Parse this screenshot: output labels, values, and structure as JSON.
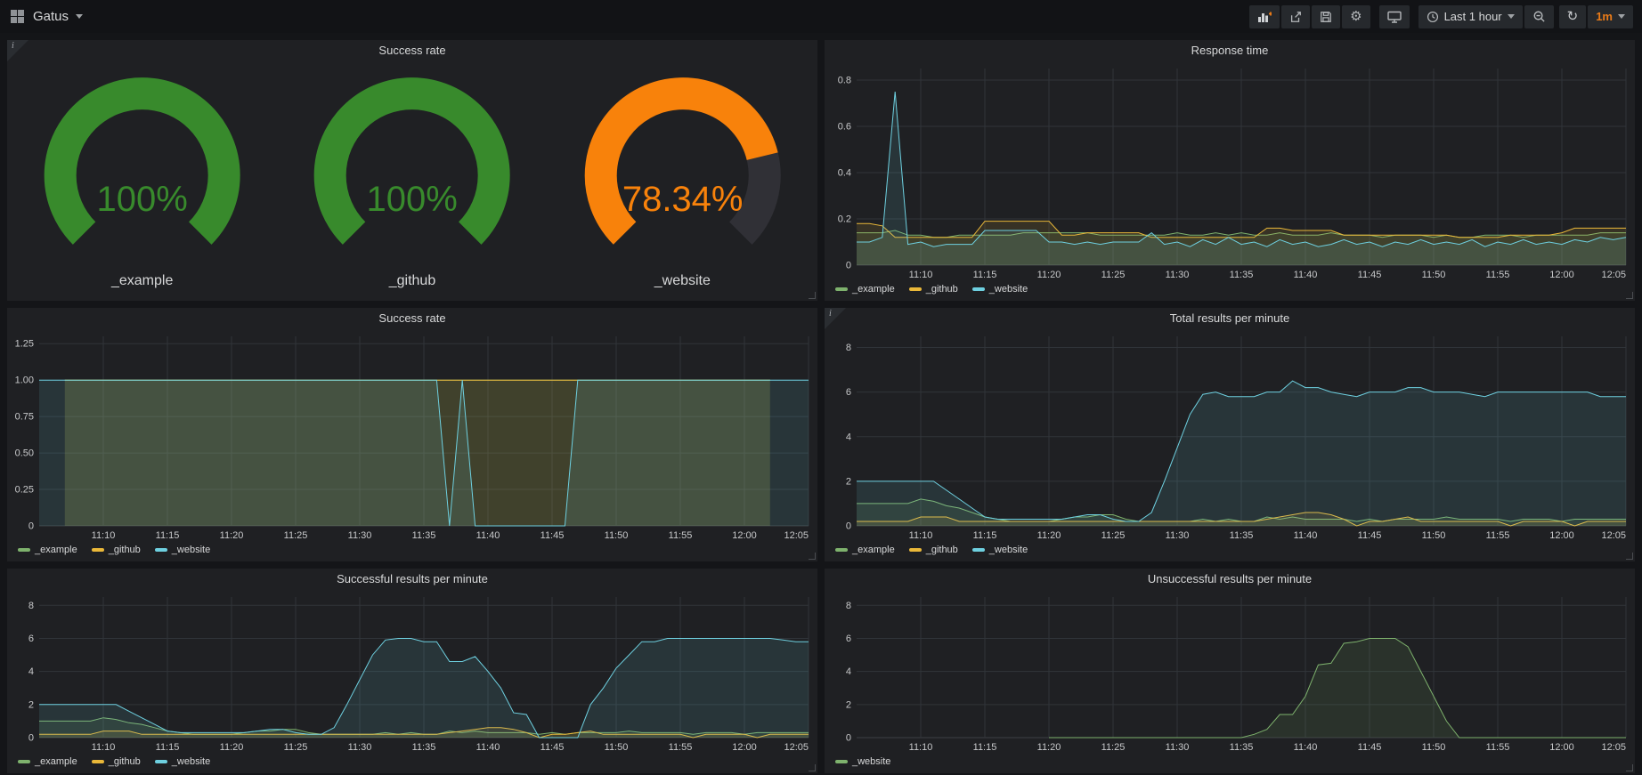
{
  "navbar": {
    "title": "Gatus",
    "buttons": {
      "add_panel": "add panel",
      "share": "share dashboard",
      "save": "save dashboard",
      "settings": "dashboard settings",
      "cycle_view": "cycle view mode",
      "time_range": "Last 1 hour",
      "zoom_out": "zoom out time range",
      "refresh_interval": "1m"
    }
  },
  "palette": {
    "green": "#7EB26D",
    "yellow": "#EAB839",
    "blue": "#6ED0E0"
  },
  "time_axis": {
    "start": "11:05",
    "end": "12:05",
    "minutes_span": 60,
    "ticks": [
      {
        "t": 5,
        "label": "11:10"
      },
      {
        "t": 10,
        "label": "11:15"
      },
      {
        "t": 15,
        "label": "11:20"
      },
      {
        "t": 20,
        "label": "11:25"
      },
      {
        "t": 25,
        "label": "11:30"
      },
      {
        "t": 30,
        "label": "11:35"
      },
      {
        "t": 35,
        "label": "11:40"
      },
      {
        "t": 40,
        "label": "11:45"
      },
      {
        "t": 45,
        "label": "11:50"
      },
      {
        "t": 50,
        "label": "11:55"
      },
      {
        "t": 55,
        "label": "12:00"
      },
      {
        "t": 60,
        "label": "12:05"
      }
    ]
  },
  "chart_data": [
    {
      "type": "gauge",
      "title": "Success rate",
      "max": 100,
      "remainder_color": "#303036",
      "gauges": [
        {
          "label": "_example",
          "value": 100,
          "display": "100%",
          "color": "#388A2C"
        },
        {
          "label": "_github",
          "value": 100,
          "display": "100%",
          "color": "#388A2C"
        },
        {
          "label": "_website",
          "value": 78.34,
          "display": "78.34%",
          "color": "#F8820B"
        }
      ]
    },
    {
      "type": "line",
      "title": "Response time",
      "ymax": 0.85,
      "yticks": [
        {
          "v": 0,
          "label": "0"
        },
        {
          "v": 0.2,
          "label": "0.2"
        },
        {
          "v": 0.4,
          "label": "0.4"
        },
        {
          "v": 0.6,
          "label": "0.6"
        },
        {
          "v": 0.8,
          "label": "0.8"
        }
      ],
      "series": [
        {
          "name": "_example",
          "color": "green",
          "values": [
            0.14,
            0.14,
            0.14,
            0.15,
            0.13,
            0.13,
            0.12,
            0.12,
            0.13,
            0.13,
            0.13,
            0.13,
            0.13,
            0.14,
            0.14,
            0.14,
            0.14,
            0.14,
            0.14,
            0.13,
            0.13,
            0.13,
            0.13,
            0.13,
            0.13,
            0.14,
            0.13,
            0.13,
            0.14,
            0.13,
            0.14,
            0.13,
            0.13,
            0.14,
            0.13,
            0.13,
            0.13,
            0.14,
            0.13,
            0.13,
            0.13,
            0.12,
            0.13,
            0.13,
            0.13,
            0.12,
            0.13,
            0.12,
            0.12,
            0.13,
            0.13,
            0.13,
            0.12,
            0.13,
            0.13,
            0.13,
            0.13,
            0.13,
            0.14,
            0.14,
            0.14
          ]
        },
        {
          "name": "_github",
          "color": "yellow",
          "values": [
            0.18,
            0.18,
            0.17,
            0.12,
            0.12,
            0.12,
            0.12,
            0.12,
            0.12,
            0.12,
            0.19,
            0.19,
            0.19,
            0.19,
            0.19,
            0.19,
            0.13,
            0.13,
            0.14,
            0.14,
            0.14,
            0.14,
            0.14,
            0.12,
            0.12,
            0.12,
            0.12,
            0.12,
            0.12,
            0.12,
            0.12,
            0.12,
            0.16,
            0.16,
            0.15,
            0.15,
            0.15,
            0.15,
            0.13,
            0.13,
            0.13,
            0.13,
            0.13,
            0.13,
            0.13,
            0.13,
            0.13,
            0.12,
            0.12,
            0.12,
            0.12,
            0.13,
            0.13,
            0.13,
            0.13,
            0.14,
            0.16,
            0.16,
            0.16,
            0.16,
            0.16
          ]
        },
        {
          "name": "_website",
          "color": "blue",
          "values": [
            0.1,
            0.1,
            0.12,
            0.75,
            0.09,
            0.1,
            0.08,
            0.09,
            0.09,
            0.09,
            0.15,
            0.15,
            0.15,
            0.15,
            0.15,
            0.1,
            0.1,
            0.09,
            0.1,
            0.09,
            0.1,
            0.1,
            0.1,
            0.14,
            0.09,
            0.1,
            0.08,
            0.11,
            0.09,
            0.12,
            0.09,
            0.1,
            0.08,
            0.11,
            0.09,
            0.1,
            0.08,
            0.09,
            0.11,
            0.09,
            0.1,
            0.08,
            0.1,
            0.09,
            0.11,
            0.09,
            0.1,
            0.09,
            0.11,
            0.08,
            0.1,
            0.09,
            0.11,
            0.09,
            0.1,
            0.09,
            0.11,
            0.1,
            0.12,
            0.11,
            0.12
          ]
        }
      ]
    },
    {
      "type": "line",
      "title": "Success rate",
      "ymax": 1.3,
      "yticks": [
        {
          "v": 0,
          "label": "0"
        },
        {
          "v": 0.25,
          "label": "0.25"
        },
        {
          "v": 0.5,
          "label": "0.50"
        },
        {
          "v": 0.75,
          "label": "0.75"
        },
        {
          "v": 1,
          "label": "1.00"
        },
        {
          "v": 1.25,
          "label": "1.25"
        }
      ],
      "series": [
        {
          "name": "_example",
          "color": "green",
          "values": [
            null,
            null,
            1,
            1,
            1,
            1,
            1,
            1,
            1,
            1,
            1,
            1,
            1,
            1,
            1,
            1,
            1,
            1,
            1,
            1,
            1,
            1,
            1,
            1,
            1,
            1,
            1,
            1,
            1,
            1,
            1,
            1,
            1,
            1,
            1,
            1,
            1,
            1,
            1,
            1,
            1,
            1,
            1,
            1,
            1,
            1,
            1,
            1,
            1,
            1,
            1,
            1,
            1,
            1,
            1,
            1,
            1,
            1,
            null,
            null,
            null
          ]
        },
        {
          "name": "_github",
          "color": "yellow",
          "values": [
            null,
            null,
            1,
            1,
            1,
            1,
            1,
            1,
            1,
            1,
            1,
            1,
            1,
            1,
            1,
            1,
            1,
            1,
            1,
            1,
            1,
            1,
            1,
            1,
            1,
            1,
            1,
            1,
            1,
            1,
            1,
            1,
            1,
            1,
            1,
            1,
            1,
            1,
            1,
            1,
            1,
            1,
            1,
            1,
            1,
            1,
            1,
            1,
            1,
            1,
            1,
            1,
            1,
            1,
            1,
            1,
            1,
            1,
            null,
            null,
            null
          ]
        },
        {
          "name": "_website",
          "color": "blue",
          "values": [
            1,
            1,
            1,
            1,
            1,
            1,
            1,
            1,
            1,
            1,
            1,
            1,
            1,
            1,
            1,
            1,
            1,
            1,
            1,
            1,
            1,
            1,
            1,
            1,
            1,
            1,
            1,
            1,
            1,
            1,
            1,
            1,
            0,
            1,
            0,
            0,
            0,
            0,
            0,
            0,
            0,
            0,
            1,
            1,
            1,
            1,
            1,
            1,
            1,
            1,
            1,
            1,
            1,
            1,
            1,
            1,
            1,
            1,
            1,
            1,
            1
          ]
        }
      ]
    },
    {
      "type": "line",
      "title": "Total results per minute",
      "ymax": 8.5,
      "yticks": [
        {
          "v": 0,
          "label": "0"
        },
        {
          "v": 2,
          "label": "2"
        },
        {
          "v": 4,
          "label": "4"
        },
        {
          "v": 6,
          "label": "6"
        },
        {
          "v": 8,
          "label": "8"
        }
      ],
      "series": [
        {
          "name": "_example",
          "color": "green",
          "values": [
            1,
            1,
            1,
            1,
            1,
            1.2,
            1.1,
            0.9,
            0.8,
            0.6,
            0.4,
            0.3,
            0.2,
            0.2,
            0.2,
            0.2,
            0.3,
            0.4,
            0.4,
            0.5,
            0.5,
            0.3,
            0.2,
            0.2,
            0.2,
            0.2,
            0.2,
            0.3,
            0.2,
            0.3,
            0.2,
            0.2,
            0.4,
            0.3,
            0.4,
            0.3,
            0.3,
            0.3,
            0.3,
            0.2,
            0.3,
            0.2,
            0.3,
            0.3,
            0.3,
            0.3,
            0.4,
            0.3,
            0.3,
            0.3,
            0.3,
            0.2,
            0.3,
            0.3,
            0.3,
            0.2,
            0.3,
            0.3,
            0.3,
            0.3,
            0.3
          ]
        },
        {
          "name": "_github",
          "color": "yellow",
          "values": [
            0.2,
            0.2,
            0.2,
            0.2,
            0.2,
            0.4,
            0.4,
            0.4,
            0.2,
            0.2,
            0.2,
            0.2,
            0.2,
            0.2,
            0.2,
            0.2,
            0.2,
            0.2,
            0.2,
            0.2,
            0.2,
            0.2,
            0.2,
            0.2,
            0.2,
            0.2,
            0.2,
            0.2,
            0.2,
            0.2,
            0.2,
            0.2,
            0.3,
            0.4,
            0.5,
            0.6,
            0.6,
            0.5,
            0.3,
            0,
            0.2,
            0.2,
            0.3,
            0.4,
            0.2,
            0.2,
            0.2,
            0.2,
            0.2,
            0.2,
            0.2,
            0,
            0.2,
            0.2,
            0.2,
            0.2,
            0,
            0.2,
            0.2,
            0.2,
            0.2
          ]
        },
        {
          "name": "_website",
          "color": "blue",
          "values": [
            2,
            2,
            2,
            2,
            2,
            2,
            2,
            1.6,
            1.2,
            0.8,
            0.4,
            0.3,
            0.3,
            0.3,
            0.3,
            0.3,
            0.3,
            0.4,
            0.5,
            0.5,
            0.3,
            0.2,
            0.2,
            0.6,
            2,
            3.5,
            5,
            5.9,
            6,
            5.8,
            5.8,
            5.8,
            6,
            6,
            6.5,
            6.2,
            6.2,
            6,
            5.9,
            5.8,
            6,
            6,
            6,
            6.2,
            6.2,
            6,
            6,
            6,
            5.9,
            5.8,
            6,
            6,
            6,
            6,
            6,
            6,
            6,
            6,
            5.8,
            5.8,
            5.8
          ]
        }
      ]
    },
    {
      "type": "line",
      "title": "Successful results per minute",
      "ymax": 8.5,
      "yticks": [
        {
          "v": 0,
          "label": "0"
        },
        {
          "v": 2,
          "label": "2"
        },
        {
          "v": 4,
          "label": "4"
        },
        {
          "v": 6,
          "label": "6"
        },
        {
          "v": 8,
          "label": "8"
        }
      ],
      "series": [
        {
          "name": "_example",
          "color": "green",
          "values": [
            1,
            1,
            1,
            1,
            1,
            1.2,
            1.1,
            0.9,
            0.8,
            0.6,
            0.4,
            0.3,
            0.2,
            0.2,
            0.2,
            0.2,
            0.3,
            0.4,
            0.4,
            0.5,
            0.5,
            0.3,
            0.2,
            0.2,
            0.2,
            0.2,
            0.2,
            0.3,
            0.2,
            0.3,
            0.2,
            0.2,
            0.4,
            0.3,
            0.4,
            0.3,
            0.3,
            0.3,
            0.3,
            0.2,
            0.3,
            0.2,
            0.3,
            0.3,
            0.3,
            0.3,
            0.4,
            0.3,
            0.3,
            0.3,
            0.3,
            0.2,
            0.3,
            0.3,
            0.3,
            0.2,
            0.3,
            0.3,
            0.3,
            0.3,
            0.3
          ]
        },
        {
          "name": "_github",
          "color": "yellow",
          "values": [
            0.2,
            0.2,
            0.2,
            0.2,
            0.2,
            0.4,
            0.4,
            0.4,
            0.2,
            0.2,
            0.2,
            0.2,
            0.2,
            0.2,
            0.2,
            0.2,
            0.2,
            0.2,
            0.2,
            0.2,
            0.2,
            0.2,
            0.2,
            0.2,
            0.2,
            0.2,
            0.2,
            0.2,
            0.2,
            0.2,
            0.2,
            0.2,
            0.3,
            0.4,
            0.5,
            0.6,
            0.6,
            0.5,
            0.3,
            0,
            0.2,
            0.2,
            0.3,
            0.4,
            0.2,
            0.2,
            0.2,
            0.2,
            0.2,
            0.2,
            0.2,
            0,
            0.2,
            0.2,
            0.2,
            0.2,
            0,
            0.2,
            0.2,
            0.2,
            0.2
          ]
        },
        {
          "name": "_website",
          "color": "blue",
          "values": [
            2,
            2,
            2,
            2,
            2,
            2,
            2,
            1.6,
            1.2,
            0.8,
            0.4,
            0.3,
            0.3,
            0.3,
            0.3,
            0.3,
            0.3,
            0.4,
            0.5,
            0.5,
            0.3,
            0.2,
            0.2,
            0.6,
            2,
            3.5,
            5,
            5.9,
            6,
            6,
            5.8,
            5.8,
            4.6,
            4.6,
            4.9,
            4,
            3,
            1.5,
            1.4,
            0,
            0,
            0,
            0,
            2,
            3,
            4.2,
            5,
            5.8,
            5.8,
            6,
            6,
            6,
            6,
            6,
            6,
            6,
            6,
            6,
            5.9,
            5.8,
            5.8
          ]
        }
      ]
    },
    {
      "type": "line",
      "title": "Unsuccessful results per minute",
      "ymax": 8.5,
      "yticks": [
        {
          "v": 0,
          "label": "0"
        },
        {
          "v": 2,
          "label": "2"
        },
        {
          "v": 4,
          "label": "4"
        },
        {
          "v": 6,
          "label": "6"
        },
        {
          "v": 8,
          "label": "8"
        }
      ],
      "series": [
        {
          "name": "_website",
          "color": "green",
          "values": [
            null,
            null,
            null,
            null,
            null,
            null,
            null,
            null,
            null,
            null,
            null,
            null,
            null,
            null,
            null,
            0,
            0,
            0,
            0,
            0,
            0,
            0,
            0,
            0,
            0,
            0,
            0,
            0,
            0,
            0,
            0,
            0.2,
            0.5,
            1.4,
            1.4,
            2.5,
            4.4,
            4.5,
            5.7,
            5.8,
            6,
            6,
            6,
            5.5,
            4,
            2.5,
            1,
            0,
            0,
            0,
            0,
            0,
            0,
            0,
            0,
            0,
            0,
            0,
            0,
            0,
            0
          ]
        }
      ]
    }
  ]
}
